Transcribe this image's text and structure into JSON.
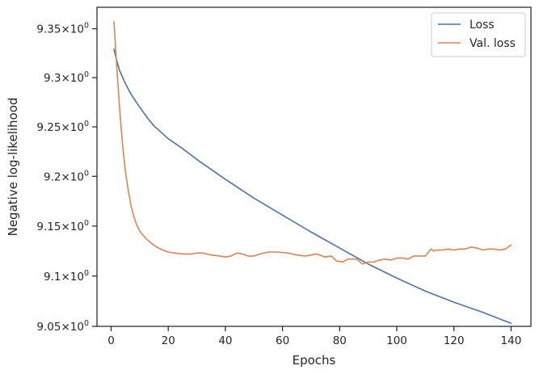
{
  "chart_data": {
    "type": "line",
    "title": "",
    "xlabel": "Epochs",
    "ylabel": "Negative log-likelihood",
    "xlim": [
      -4.95,
      146.95
    ],
    "ylim": [
      9.05,
      9.372
    ],
    "yscale": "log",
    "grid": false,
    "legend_position": "top-right",
    "x_ticks": [
      0,
      20,
      40,
      60,
      80,
      100,
      120,
      140
    ],
    "y_ticks": [
      {
        "value": 9.05,
        "base": "9.05",
        "exp": "0"
      },
      {
        "value": 9.1,
        "base": "9.1",
        "exp": "0"
      },
      {
        "value": 9.15,
        "base": "9.15",
        "exp": "0"
      },
      {
        "value": 9.2,
        "base": "9.2",
        "exp": "0"
      },
      {
        "value": 9.25,
        "base": "9.25",
        "exp": "0"
      },
      {
        "value": 9.3,
        "base": "9.3",
        "exp": "0"
      },
      {
        "value": 9.35,
        "base": "9.35",
        "exp": "0"
      }
    ],
    "series": [
      {
        "name": "Loss",
        "color": "#4c72b0",
        "x": [
          1,
          2,
          3,
          5,
          7,
          10,
          13,
          15,
          20,
          25,
          30,
          35,
          40,
          50,
          60,
          70,
          80,
          90,
          100,
          110,
          120,
          130,
          140
        ],
        "y": [
          9.329,
          9.317,
          9.307,
          9.294,
          9.283,
          9.27,
          9.258,
          9.251,
          9.238,
          9.228,
          9.217,
          9.207,
          9.197,
          9.178,
          9.161,
          9.144,
          9.128,
          9.112,
          9.098,
          9.085,
          9.074,
          9.064,
          9.053
        ]
      },
      {
        "name": "Val. loss",
        "color": "#dd8452",
        "x": [
          1,
          2,
          3,
          4,
          5,
          6,
          7,
          8,
          9,
          10,
          12,
          14,
          16,
          18,
          20,
          22,
          25,
          28,
          30,
          32,
          35,
          38,
          40,
          42,
          44,
          46,
          48,
          50,
          52,
          55,
          58,
          62,
          65,
          68,
          70,
          72,
          75,
          77,
          79,
          81,
          83,
          86,
          88,
          90,
          92,
          94,
          96,
          98,
          100,
          102,
          104,
          106,
          108,
          110,
          112,
          113,
          114,
          116,
          118,
          120,
          122,
          124,
          126,
          128,
          130,
          132,
          134,
          136,
          138,
          140
        ],
        "y": [
          9.357,
          9.31,
          9.268,
          9.232,
          9.205,
          9.186,
          9.17,
          9.159,
          9.151,
          9.145,
          9.138,
          9.133,
          9.129,
          9.126,
          9.124,
          9.123,
          9.122,
          9.122,
          9.123,
          9.123,
          9.121,
          9.12,
          9.119,
          9.12,
          9.123,
          9.122,
          9.12,
          9.12,
          9.122,
          9.124,
          9.124,
          9.123,
          9.121,
          9.12,
          9.121,
          9.122,
          9.119,
          9.12,
          9.115,
          9.114,
          9.117,
          9.117,
          9.112,
          9.114,
          9.114,
          9.116,
          9.117,
          9.116,
          9.118,
          9.118,
          9.117,
          9.12,
          9.12,
          9.12,
          9.127,
          9.125,
          9.126,
          9.126,
          9.127,
          9.126,
          9.127,
          9.127,
          9.129,
          9.128,
          9.126,
          9.127,
          9.127,
          9.126,
          9.127,
          9.131
        ]
      }
    ]
  }
}
